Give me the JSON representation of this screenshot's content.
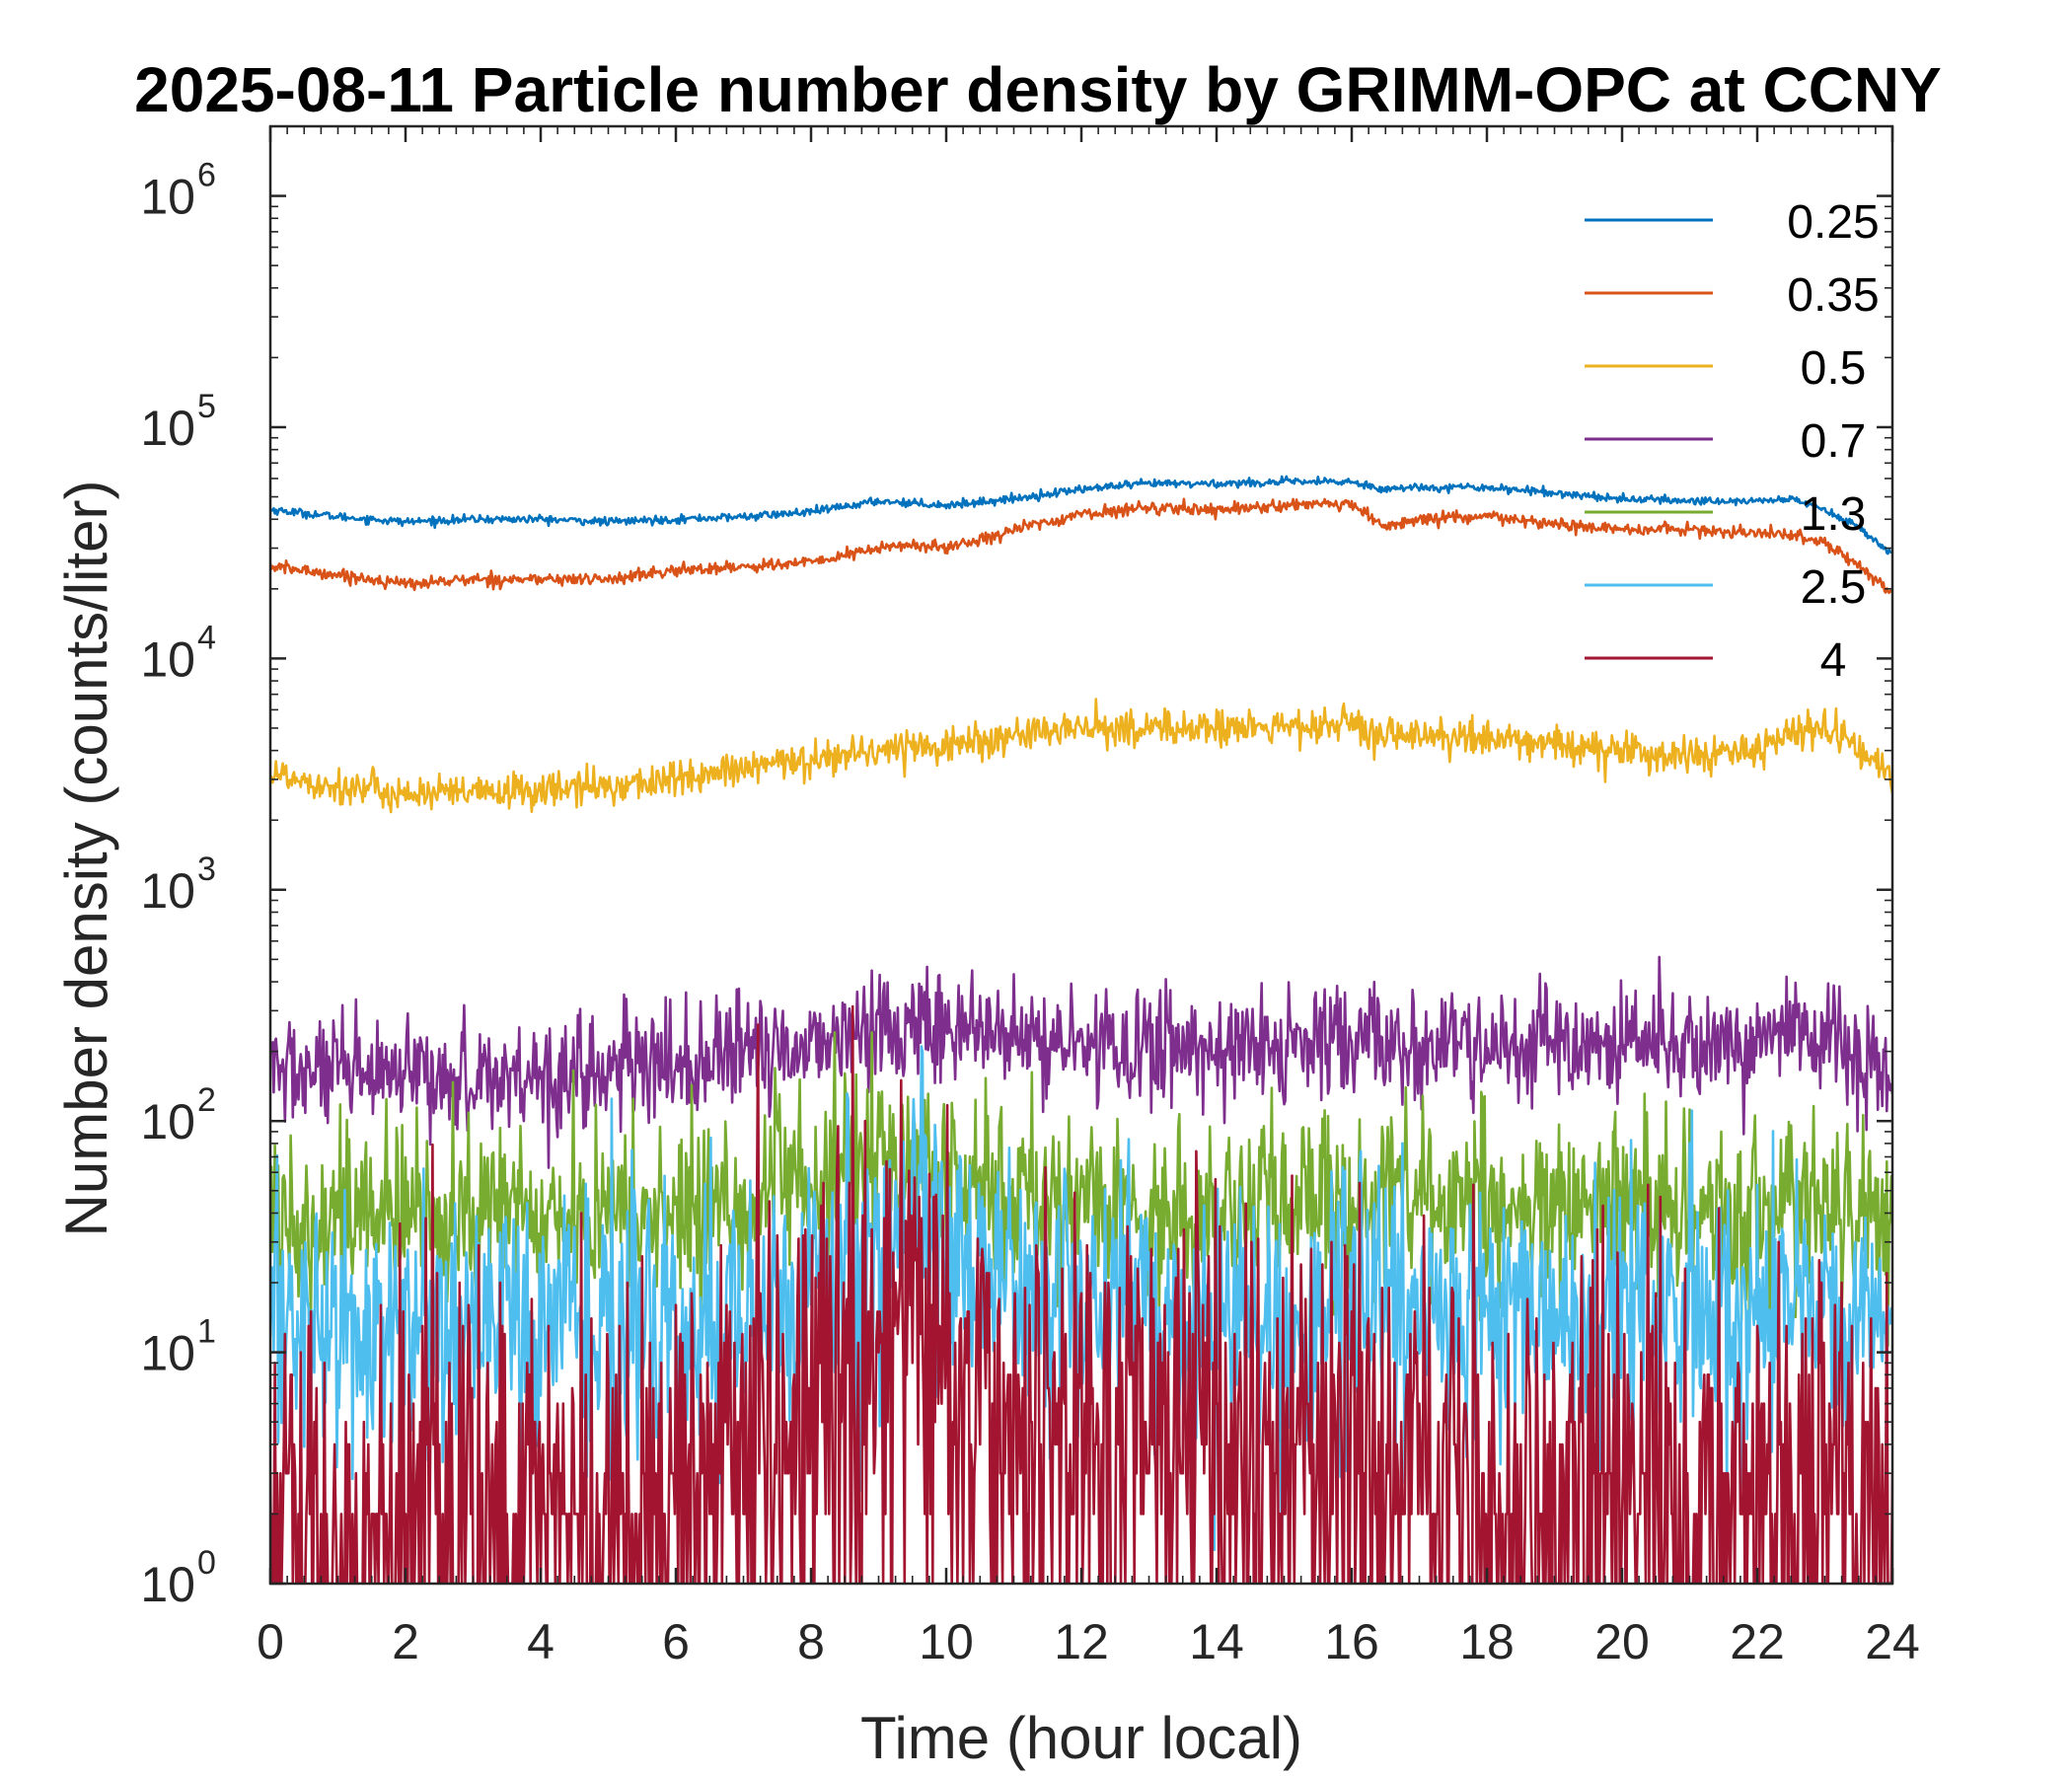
{
  "chart_data": {
    "type": "line",
    "title": "2025-08-11 Particle number density by GRIMM-OPC at CCNY",
    "xlabel": "Time (hour local)",
    "ylabel": "Number density (counts/liter)",
    "xlim": [
      0,
      24
    ],
    "ylim": [
      1,
      2000000
    ],
    "yscale": "log",
    "grid": false,
    "legend_position": "top-right",
    "x_ticks": [
      {
        "value": 0,
        "label": "0"
      },
      {
        "value": 2,
        "label": "2"
      },
      {
        "value": 4,
        "label": "4"
      },
      {
        "value": 6,
        "label": "6"
      },
      {
        "value": 8,
        "label": "8"
      },
      {
        "value": 10,
        "label": "10"
      },
      {
        "value": 12,
        "label": "12"
      },
      {
        "value": 14,
        "label": "14"
      },
      {
        "value": 16,
        "label": "16"
      },
      {
        "value": 18,
        "label": "18"
      },
      {
        "value": 20,
        "label": "20"
      },
      {
        "value": 22,
        "label": "22"
      },
      {
        "value": 24,
        "label": "24"
      }
    ],
    "y_ticks": [
      {
        "value": 1,
        "base": "10",
        "exp": "0"
      },
      {
        "value": 10,
        "base": "10",
        "exp": "1"
      },
      {
        "value": 100,
        "base": "10",
        "exp": "2"
      },
      {
        "value": 1000,
        "base": "10",
        "exp": "3"
      },
      {
        "value": 10000,
        "base": "10",
        "exp": "4"
      },
      {
        "value": 100000,
        "base": "10",
        "exp": "5"
      },
      {
        "value": 1000000,
        "base": "10",
        "exp": "6"
      }
    ],
    "x": [
      0,
      1,
      2,
      3,
      4,
      5,
      6,
      7,
      8,
      9,
      9.5,
      10,
      11,
      12,
      13,
      14,
      15,
      16,
      16.5,
      17,
      18,
      19,
      20,
      21,
      22,
      22.5,
      23,
      23.5,
      24
    ],
    "series": [
      {
        "name": "0.25",
        "color": "#0072BD",
        "noise": 0.02,
        "values": [
          44000,
          41000,
          39000,
          40000,
          40000,
          39000,
          40000,
          41000,
          43000,
          48000,
          47000,
          46000,
          49000,
          54000,
          57000,
          57000,
          58000,
          58000,
          54000,
          55000,
          55000,
          52000,
          49000,
          48000,
          48000,
          49000,
          44000,
          37000,
          28000
        ]
      },
      {
        "name": "0.35",
        "color": "#D95319",
        "noise": 0.03,
        "values": [
          25000,
          23000,
          21000,
          22000,
          22000,
          22000,
          24000,
          25000,
          26000,
          30000,
          31000,
          30000,
          36000,
          42000,
          45000,
          44000,
          46000,
          46000,
          37000,
          40000,
          41000,
          38000,
          36000,
          36000,
          35000,
          34000,
          32000,
          25000,
          19000
        ]
      },
      {
        "name": "0.5",
        "color": "#EDB120",
        "noise": 0.09,
        "values": [
          3200,
          2800,
          2600,
          2600,
          2700,
          2800,
          3000,
          3300,
          3700,
          4000,
          4200,
          4200,
          4600,
          5000,
          5000,
          5000,
          5000,
          5200,
          4500,
          4600,
          4500,
          4300,
          3900,
          3800,
          3900,
          4700,
          5000,
          4200,
          3000
        ]
      },
      {
        "name": "0.7",
        "color": "#7E2F8E",
        "noise": 0.28,
        "values": [
          170,
          155,
          150,
          155,
          160,
          165,
          175,
          190,
          220,
          250,
          270,
          250,
          225,
          210,
          210,
          210,
          205,
          215,
          215,
          210,
          205,
          205,
          210,
          210,
          215,
          250,
          220,
          190,
          150
        ]
      },
      {
        "name": "1.3",
        "color": "#77AC30",
        "noise": 0.45,
        "values": [
          40,
          40,
          38,
          40,
          40,
          38,
          40,
          44,
          55,
          65,
          70,
          55,
          48,
          44,
          40,
          40,
          42,
          45,
          55,
          45,
          42,
          40,
          40,
          40,
          40,
          45,
          40,
          40,
          38
        ]
      },
      {
        "name": "2.5",
        "color": "#4DBEEE",
        "noise": 0.65,
        "values": [
          14,
          13,
          12,
          13,
          13,
          12,
          13,
          15,
          20,
          28,
          35,
          30,
          22,
          18,
          15,
          14,
          14,
          15,
          18,
          15,
          14,
          14,
          14,
          14,
          14,
          16,
          15,
          14,
          12
        ]
      },
      {
        "name": "4",
        "color": "#A2142F",
        "noise": 1.1,
        "values": [
          2.2,
          2.3,
          2.2,
          2.3,
          2.3,
          2.2,
          2.5,
          4,
          8,
          13,
          16,
          10,
          6,
          5,
          5,
          5,
          4,
          4,
          4,
          3.5,
          3.5,
          3.2,
          3.2,
          3,
          3,
          3,
          2.8,
          2.6,
          2.2
        ]
      }
    ]
  }
}
